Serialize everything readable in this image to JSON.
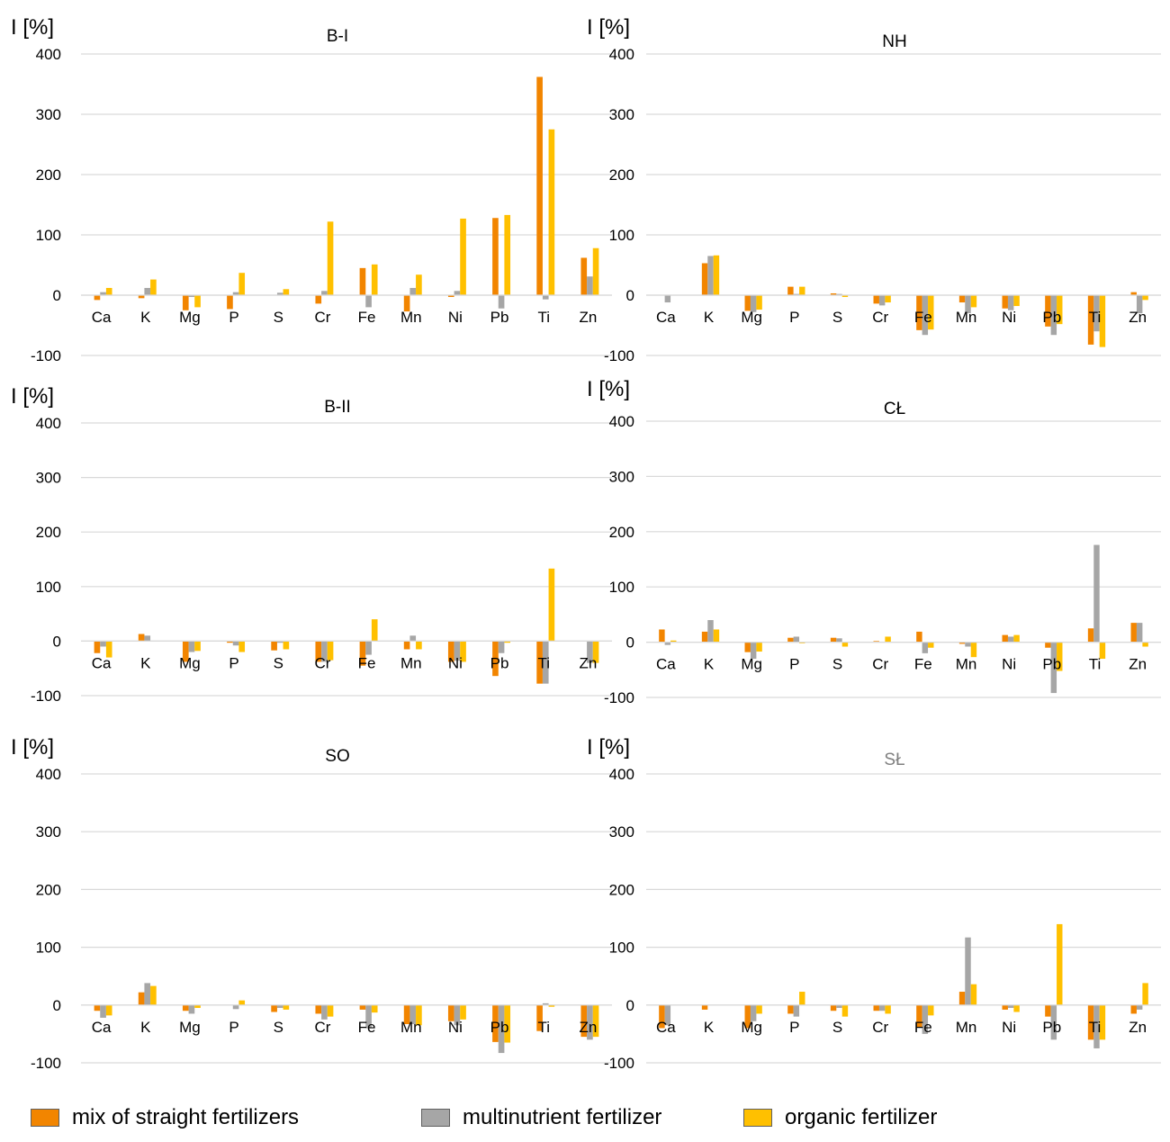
{
  "y_axis_label": "I [%]",
  "colors": {
    "mix of straight fertilizers": "#F28500",
    "multinutrient fertilizer": "#A6A6A6",
    "organic fertilizer": "#FFC000"
  },
  "legend": [
    {
      "label": "mix of straight fertilizers",
      "color": "#F28500"
    },
    {
      "label": "multinutrient fertilizer",
      "color": "#A6A6A6"
    },
    {
      "label": "organic fertilizer",
      "color": "#FFC000"
    }
  ],
  "chart_data": [
    {
      "type": "bar",
      "title": "B-I",
      "ylabel": "I [%]",
      "ylim": [
        -100,
        400
      ],
      "yticks": [
        -100,
        0,
        100,
        200,
        300,
        400
      ],
      "grid": true,
      "categories": [
        "Ca",
        "K",
        "Mg",
        "P",
        "S",
        "Cr",
        "Fe",
        "Mn",
        "Ni",
        "Pb",
        "Ti",
        "Zn"
      ],
      "series": [
        {
          "name": "mix of straight fertilizers",
          "values": [
            -8,
            -5,
            -25,
            -23,
            0,
            -14,
            45,
            -27,
            -3,
            128,
            362,
            62
          ]
        },
        {
          "name": "multinutrient fertilizer",
          "values": [
            5,
            12,
            -3,
            5,
            4,
            7,
            -20,
            12,
            7,
            -22,
            -7,
            31
          ]
        },
        {
          "name": "organic fertilizer",
          "values": [
            12,
            26,
            -20,
            37,
            10,
            122,
            51,
            34,
            127,
            133,
            275,
            78
          ]
        }
      ]
    },
    {
      "type": "bar",
      "title": "NH",
      "ylabel": "I [%]",
      "ylim": [
        -100,
        400
      ],
      "yticks": [
        -100,
        0,
        100,
        200,
        300,
        400
      ],
      "grid": true,
      "categories": [
        "Ca",
        "K",
        "Mg",
        "P",
        "S",
        "Cr",
        "Fe",
        "Mn",
        "Ni",
        "Pb",
        "Ti",
        "Zn"
      ],
      "series": [
        {
          "name": "mix of straight fertilizers",
          "values": [
            0,
            53,
            -26,
            14,
            3,
            -14,
            -58,
            -12,
            -22,
            -52,
            -82,
            5
          ]
        },
        {
          "name": "multinutrient fertilizer",
          "values": [
            -12,
            65,
            -28,
            2,
            2,
            -17,
            -66,
            -30,
            -25,
            -66,
            -60,
            -30
          ]
        },
        {
          "name": "organic fertilizer",
          "values": [
            0,
            66,
            -24,
            14,
            -3,
            -12,
            -57,
            -20,
            -18,
            -48,
            -86,
            -8
          ]
        }
      ]
    },
    {
      "type": "bar",
      "title": "B-II",
      "ylabel": "I [%]",
      "ylim": [
        -100,
        400
      ],
      "yticks": [
        -100,
        0,
        100,
        200,
        300,
        400
      ],
      "grid": true,
      "categories": [
        "Ca",
        "K",
        "Mg",
        "P",
        "S",
        "Cr",
        "Fe",
        "Mn",
        "Ni",
        "Pb",
        "Ti",
        "Zn"
      ],
      "series": [
        {
          "name": "mix of straight fertilizers",
          "values": [
            -22,
            13,
            -38,
            -3,
            -17,
            -38,
            -45,
            -15,
            -38,
            -64,
            -78,
            0
          ]
        },
        {
          "name": "multinutrient fertilizer",
          "values": [
            -10,
            10,
            -20,
            -8,
            -3,
            -38,
            -25,
            10,
            -36,
            -22,
            -78,
            -40
          ]
        },
        {
          "name": "organic fertilizer",
          "values": [
            -30,
            0,
            -18,
            -20,
            -15,
            -35,
            40,
            -15,
            -38,
            -3,
            133,
            -40
          ]
        }
      ]
    },
    {
      "type": "bar",
      "title": "CŁ",
      "ylabel": "I [%]",
      "ylim": [
        -100,
        400
      ],
      "yticks": [
        -100,
        0,
        100,
        200,
        300,
        400
      ],
      "grid": true,
      "categories": [
        "Ca",
        "K",
        "Mg",
        "P",
        "S",
        "Cr",
        "Fe",
        "Mn",
        "Ni",
        "Pb",
        "Ti",
        "Zn"
      ],
      "series": [
        {
          "name": "mix of straight fertilizers",
          "values": [
            23,
            19,
            -18,
            8,
            8,
            2,
            19,
            -3,
            13,
            -10,
            25,
            35
          ]
        },
        {
          "name": "multinutrient fertilizer",
          "values": [
            -5,
            40,
            -30,
            10,
            7,
            1,
            -20,
            -8,
            10,
            -92,
            176,
            35
          ]
        },
        {
          "name": "organic fertilizer",
          "values": [
            3,
            23,
            -17,
            -2,
            -8,
            10,
            -10,
            -27,
            13,
            -52,
            -30,
            -8
          ]
        }
      ]
    },
    {
      "type": "bar",
      "title": "SO",
      "ylabel": "I [%]",
      "ylim": [
        -100,
        400
      ],
      "yticks": [
        -100,
        0,
        100,
        200,
        300,
        400
      ],
      "grid": true,
      "categories": [
        "Ca",
        "K",
        "Mg",
        "P",
        "S",
        "Cr",
        "Fe",
        "Mn",
        "Ni",
        "Pb",
        "Ti",
        "Zn"
      ],
      "series": [
        {
          "name": "mix of straight fertilizers",
          "values": [
            -10,
            22,
            -10,
            0,
            -12,
            -15,
            -8,
            -33,
            -28,
            -64,
            -45,
            -55
          ]
        },
        {
          "name": "multinutrient fertilizer",
          "values": [
            -22,
            38,
            -15,
            -7,
            -5,
            -25,
            -40,
            -33,
            -35,
            -83,
            3,
            -60
          ]
        },
        {
          "name": "organic fertilizer",
          "values": [
            -18,
            33,
            -5,
            8,
            -8,
            -20,
            -13,
            -35,
            -25,
            -65,
            -3,
            -55
          ]
        }
      ]
    },
    {
      "type": "bar",
      "title": "SŁ",
      "ylabel": "I [%]",
      "ylim": [
        -100,
        400
      ],
      "yticks": [
        -100,
        0,
        100,
        200,
        300,
        400
      ],
      "grid": true,
      "categories": [
        "Ca",
        "K",
        "Mg",
        "P",
        "S",
        "Cr",
        "Fe",
        "Mn",
        "Ni",
        "Pb",
        "Ti",
        "Zn"
      ],
      "series": [
        {
          "name": "mix of straight fertilizers",
          "values": [
            -40,
            -8,
            -40,
            -15,
            -10,
            -10,
            -38,
            23,
            -8,
            -20,
            -60,
            -15
          ]
        },
        {
          "name": "multinutrient fertilizer",
          "values": [
            -35,
            0,
            -28,
            -20,
            -5,
            -10,
            -50,
            117,
            -5,
            -60,
            -75,
            -8
          ]
        },
        {
          "name": "organic fertilizer",
          "values": [
            0,
            0,
            -15,
            23,
            -20,
            -15,
            -18,
            36,
            -12,
            140,
            -60,
            38
          ]
        }
      ]
    }
  ]
}
